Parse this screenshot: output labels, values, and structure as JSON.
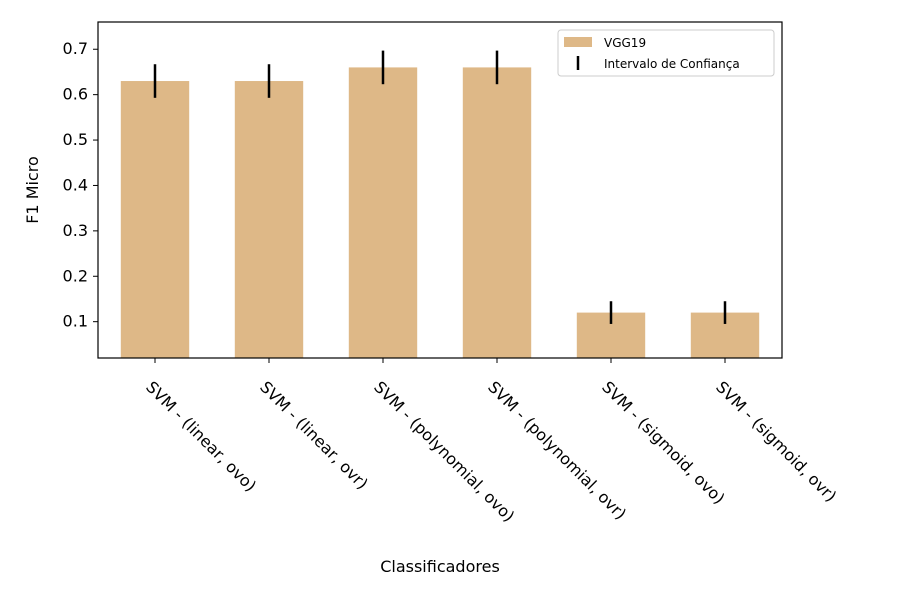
{
  "chart_data": {
    "type": "bar",
    "categories": [
      "SVM - (linear, ovo)",
      "SVM - (linear, ovr)",
      "SVM - (polynomial, ovo)",
      "SVM - (polynomial, ovr)",
      "SVM - (sigmoid, ovo)",
      "SVM - (sigmoid, ovr)"
    ],
    "series": [
      {
        "name": "VGG19",
        "values": [
          0.63,
          0.63,
          0.66,
          0.66,
          0.12,
          0.12
        ],
        "ci_low": [
          0.593,
          0.593,
          0.623,
          0.623,
          0.095,
          0.095
        ],
        "ci_high": [
          0.667,
          0.667,
          0.697,
          0.697,
          0.145,
          0.145
        ],
        "color": "#deb887"
      }
    ],
    "title": "",
    "xlabel": "Classificadores",
    "ylabel": "F1 Micro",
    "ylim": [
      0.02,
      0.76
    ],
    "yticks": [
      0.1,
      0.2,
      0.3,
      0.4,
      0.5,
      0.6,
      0.7
    ],
    "ytick_labels": [
      "0.1",
      "0.2",
      "0.3",
      "0.4",
      "0.5",
      "0.6",
      "0.7"
    ],
    "grid": false,
    "legend": {
      "position": "top-right",
      "entries": [
        "VGG19",
        "Intervalo de Confiança"
      ]
    },
    "errorbar_color": "#000000",
    "tick_label_rotation": "-45"
  }
}
